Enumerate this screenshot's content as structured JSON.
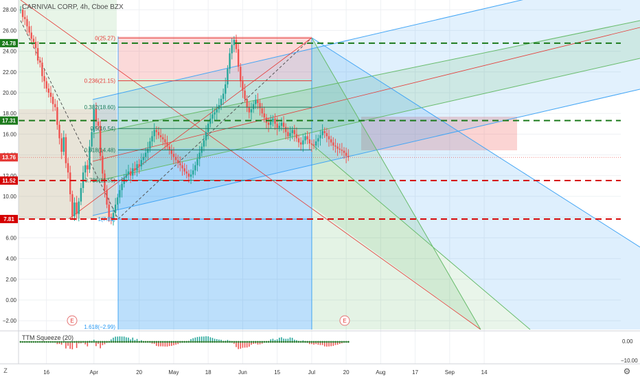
{
  "header": {
    "title": "CARNIVAL CORP, 4h, Cboe BZX"
  },
  "indicator": {
    "label": "TTM Squeeze (20)",
    "axis_ticks": [
      "0.00",
      "−10.00"
    ]
  },
  "price_axis": {
    "ticks": [
      "28.00",
      "26.00",
      "24.00",
      "22.00",
      "20.00",
      "18.00",
      "16.00",
      "14.00",
      "12.00",
      "10.00",
      "8.00",
      "6.00",
      "4.00",
      "2.00",
      "0.00",
      "−2.00"
    ],
    "tick_values": [
      28,
      26,
      24,
      22,
      20,
      18,
      16,
      14,
      12,
      10,
      8,
      6,
      4,
      2,
      0,
      -2
    ],
    "badges": [
      {
        "label": "24.78",
        "value": 24.78,
        "color": "#1b7a1b"
      },
      {
        "label": "17.31",
        "value": 17.31,
        "color": "#1b7a1b"
      },
      {
        "label": "13.76",
        "value": 13.76,
        "color": "#e53935"
      },
      {
        "label": "11.52",
        "value": 11.52,
        "color": "#d50000"
      },
      {
        "label": "7.81",
        "value": 7.81,
        "color": "#d50000"
      }
    ]
  },
  "time_axis": {
    "labels": [
      "16",
      "Apr",
      "20",
      "May",
      "18",
      "Jun",
      "15",
      "Jul",
      "20",
      "Aug",
      "17",
      "Sep",
      "14"
    ],
    "bar_index": [
      12,
      34,
      55,
      71,
      87,
      103,
      119,
      135,
      151,
      167,
      183,
      199,
      215
    ]
  },
  "fib_labels": [
    {
      "text": "0(25.27)",
      "value": 25.27
    },
    {
      "text": "0.236(21.15)",
      "value": 21.15
    },
    {
      "text": "0.382(18.60)",
      "value": 18.6
    },
    {
      "text": "0.5(16.54)",
      "value": 16.54
    },
    {
      "text": "0.618(14.48)",
      "value": 14.48
    },
    {
      "text": "0.786(11.55)",
      "value": 11.55
    },
    {
      "text": "1(7.81)",
      "value": 7.81
    },
    {
      "text": "1.618(−2.99)",
      "value": -2.99
    }
  ],
  "earnings_markers": [
    {
      "label": "E",
      "bar": 21
    },
    {
      "label": "E",
      "bar": 116
    }
  ],
  "hlines": [
    {
      "value": 24.78,
      "color": "#1b7a1b"
    },
    {
      "value": 17.31,
      "color": "#1b7a1b"
    },
    {
      "value": 11.52,
      "color": "#d50000"
    },
    {
      "value": 7.81,
      "color": "#d50000"
    }
  ],
  "chart_data": {
    "type": "candlestick",
    "title": "CARNIVAL CORP, 4h, Cboe BZX",
    "last_price": 13.76,
    "ylim": [
      -2.4,
      29.4
    ],
    "grid": true,
    "closes": [
      28.0,
      27.3,
      27.1,
      26.4,
      25.8,
      25.2,
      24.9,
      24.3,
      23.1,
      22.9,
      21.6,
      21.1,
      20.4,
      20.0,
      19.6,
      18.9,
      18.6,
      16.9,
      15.6,
      14.3,
      15.7,
      13.2,
      12.3,
      10.2,
      8.1,
      9.4,
      8.3,
      9.5,
      10.8,
      12.3,
      13.0,
      12.6,
      14.8,
      16.2,
      18.4,
      17.2,
      16.8,
      13.9,
      12.2,
      10.6,
      9.2,
      8.0,
      7.9,
      8.4,
      9.2,
      9.9,
      10.6,
      11.2,
      11.8,
      12.1,
      12.4,
      12.0,
      12.7,
      12.5,
      13.1,
      12.9,
      13.5,
      13.8,
      14.2,
      14.6,
      15.3,
      15.8,
      16.4,
      16.2,
      15.9,
      15.7,
      15.5,
      15.2,
      14.8,
      14.5,
      14.1,
      13.8,
      13.5,
      13.2,
      13.0,
      12.7,
      12.4,
      12.2,
      11.9,
      12.1,
      12.5,
      13.0,
      13.6,
      14.2,
      14.8,
      15.4,
      16.2,
      17.0,
      17.5,
      17.9,
      18.1,
      18.4,
      18.8,
      19.4,
      19.9,
      20.8,
      22.3,
      23.8,
      24.6,
      25.1,
      24.2,
      22.5,
      21.1,
      20.2,
      19.4,
      18.6,
      18.1,
      18.4,
      18.9,
      19.3,
      19.0,
      18.5,
      18.0,
      17.6,
      17.1,
      16.9,
      17.2,
      17.5,
      17.0,
      16.6,
      16.8,
      17.1,
      16.7,
      16.2,
      15.8,
      16.1,
      16.4,
      16.0,
      15.6,
      15.2,
      15.0,
      15.4,
      15.8,
      15.5,
      15.1,
      15.0,
      14.9,
      15.3,
      15.6,
      15.9,
      16.3,
      16.1,
      15.8,
      15.5,
      15.2,
      14.9,
      14.8,
      14.6,
      14.5,
      14.4,
      14.2,
      13.9,
      13.76
    ]
  }
}
